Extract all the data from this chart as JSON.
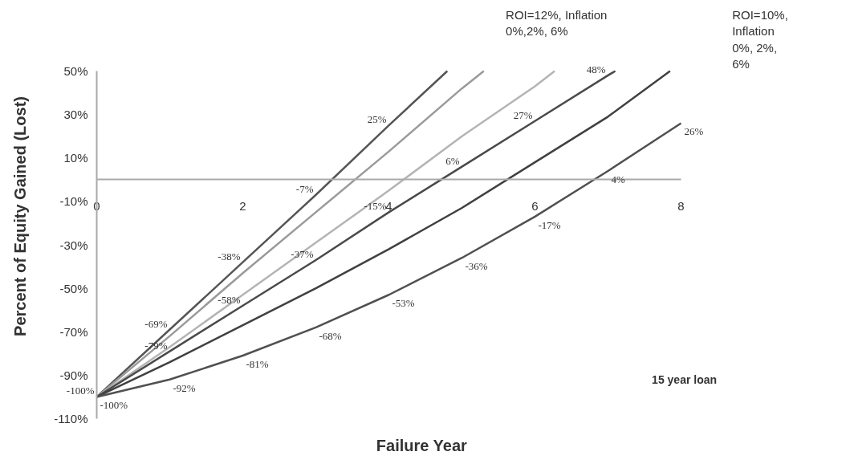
{
  "chart_data": {
    "type": "line",
    "xlabel": "Failure Year",
    "ylabel": "Percent of Equity Gained (Lost)",
    "xlim": [
      0,
      8
    ],
    "xticks": [
      0,
      2,
      4,
      6,
      8
    ],
    "ylim": [
      -110,
      50
    ],
    "yticks": [
      {
        "value": 50,
        "label": "50%"
      },
      {
        "value": 30,
        "label": "30%"
      },
      {
        "value": 10,
        "label": "10%"
      },
      {
        "value": -10,
        "label": "-10%"
      },
      {
        "value": -30,
        "label": "-30%"
      },
      {
        "value": -50,
        "label": "-50%"
      },
      {
        "value": -70,
        "label": "-70%"
      },
      {
        "value": -90,
        "label": "-90%"
      },
      {
        "value": -110,
        "label": "-110%"
      }
    ],
    "grid": false,
    "marker": "none",
    "line_style": "solid",
    "series": [
      {
        "color": "#555555",
        "x": [
          0,
          1,
          2,
          3,
          4,
          4.8
        ],
        "values": [
          -100,
          -69,
          -38,
          -7,
          25,
          50
        ],
        "value_labels": [
          "-100%",
          "-69%",
          "-38%",
          "-7%",
          "25%",
          null
        ]
      },
      {
        "color": "#9a9a9a",
        "x": [
          0,
          1,
          2,
          3,
          4,
          5,
          5.3
        ],
        "values": [
          -100,
          -72,
          -43,
          -15,
          13,
          42,
          50
        ]
      },
      {
        "color": "#b4b4b4",
        "x": [
          0,
          1,
          2,
          3,
          4,
          5,
          6,
          6.27
        ],
        "values": [
          -100,
          -77,
          -53,
          -29,
          -5,
          20,
          43,
          50
        ]
      },
      {
        "color": "#4a4a4a",
        "x": [
          0,
          1,
          2,
          3,
          4,
          5,
          6,
          7,
          7.1
        ],
        "values": [
          -100,
          -79,
          -58,
          -37,
          -15,
          6,
          27,
          48,
          50
        ],
        "value_labels": [
          null,
          "-79%",
          "-58%",
          "-37%",
          "-15%",
          "6%",
          "27%",
          "48%",
          null
        ]
      },
      {
        "color": "#404040",
        "x": [
          0,
          1,
          2,
          3,
          4,
          5,
          6,
          7,
          7.85
        ],
        "values": [
          -100,
          -84,
          -67,
          -50,
          -32,
          -13,
          8,
          29,
          50
        ]
      },
      {
        "color": "#505050",
        "x": [
          0,
          1,
          2,
          3,
          4,
          5,
          6,
          7,
          8
        ],
        "values": [
          -100,
          -92,
          -81,
          -68,
          -53,
          -36,
          -17,
          4,
          26
        ],
        "value_labels": [
          "-100%",
          "-92%",
          "-81%",
          "-68%",
          "-53%",
          "-36%",
          "-17%",
          "4%",
          "26%"
        ]
      }
    ],
    "annotations": [
      "ROI=12%, Inflation\n0%,2%, 6%",
      "ROI=10%,\nInflation\n0%, 2%,\n6%",
      "15 year loan"
    ]
  }
}
